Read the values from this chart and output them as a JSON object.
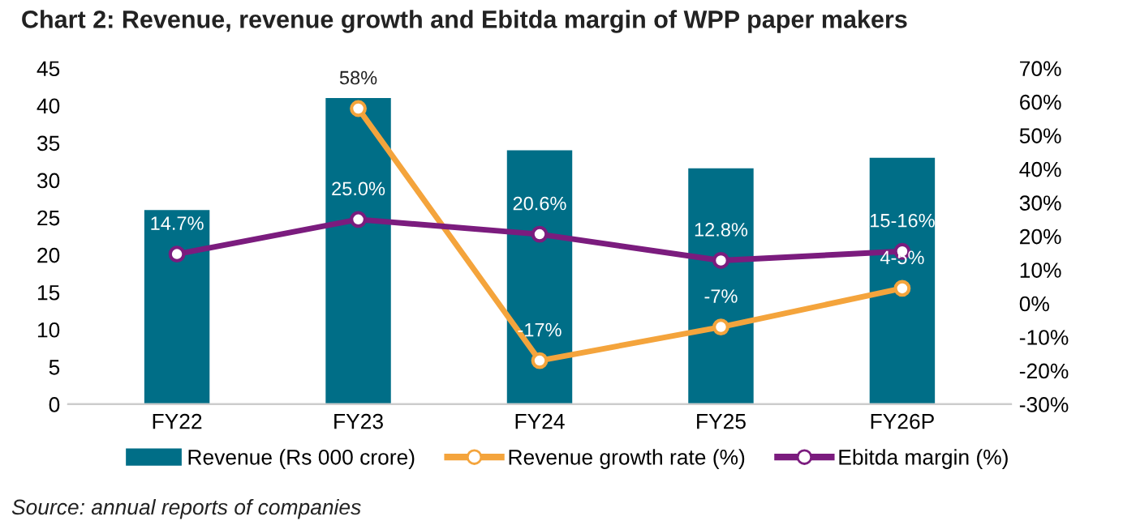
{
  "chart_data": {
    "type": "bar",
    "title": "Chart 2: Revenue, revenue growth and Ebitda margin of WPP paper makers",
    "categories": [
      "FY22",
      "FY23",
      "FY24",
      "FY25",
      "FY26P"
    ],
    "series": [
      {
        "name": "Revenue (Rs 000 crore)",
        "color": "#006e87",
        "values": [
          26.0,
          41.0,
          34.0,
          31.6,
          33.0
        ]
      },
      {
        "name": "Revenue growth rate (%)",
        "type": "line",
        "axis": "y2",
        "color": "#f4a43c",
        "marker": "circle",
        "values": [
          null,
          58,
          -17,
          -7,
          4.5
        ],
        "value_labels": [
          null,
          "58%",
          "-17%",
          "-7%",
          "4-5%"
        ]
      },
      {
        "name": "Ebitda margin (%)",
        "type": "line",
        "axis": "y2",
        "color": "#7b1c7e",
        "marker": "circle",
        "values": [
          14.7,
          25.0,
          20.6,
          12.8,
          15.5
        ],
        "value_labels": [
          "14.7%",
          "25.0%",
          "20.6%",
          "12.8%",
          "15-16%"
        ]
      }
    ],
    "ylim": [
      0,
      45
    ],
    "yticks": [
      0,
      5,
      10,
      15,
      20,
      25,
      30,
      35,
      40,
      45
    ],
    "y2lim": [
      -30,
      70
    ],
    "y2ticks": [
      {
        "value": -30,
        "label": "-30%"
      },
      {
        "value": -20,
        "label": "-20%"
      },
      {
        "value": -10,
        "label": "-10%"
      },
      {
        "value": 0,
        "label": "0%"
      },
      {
        "value": 10,
        "label": "10%"
      },
      {
        "value": 20,
        "label": "20%"
      },
      {
        "value": 30,
        "label": "30%"
      },
      {
        "value": 40,
        "label": "40%"
      },
      {
        "value": 50,
        "label": "50%"
      },
      {
        "value": 60,
        "label": "60%"
      },
      {
        "value": 70,
        "label": "70%"
      }
    ],
    "legend": "bottom",
    "grid": false,
    "annotations": [
      "Source: annual reports of companies"
    ]
  }
}
